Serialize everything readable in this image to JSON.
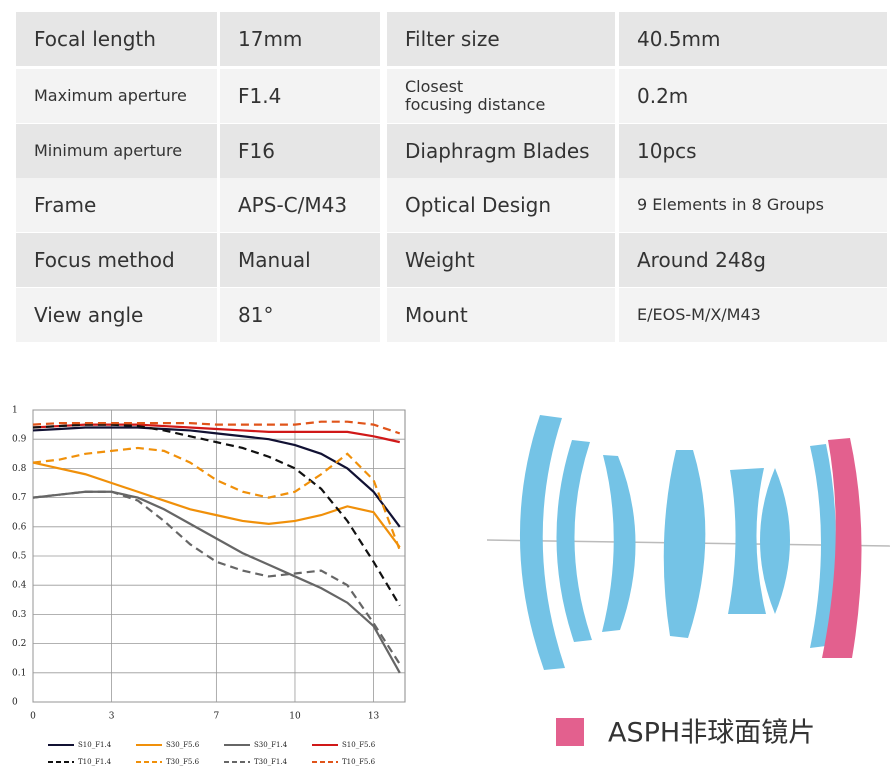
{
  "table": {
    "rows": [
      [
        "Focal length",
        "17mm",
        "Filter size",
        "40.5mm"
      ],
      [
        "Maximum aperture",
        "F1.4",
        "Closest\nfocusing distance",
        "0.2m"
      ],
      [
        "Minimum aperture",
        "F16",
        "Diaphragm Blades",
        "10pcs"
      ],
      [
        "Frame",
        "APS-C/M43",
        "Optical Design",
        "9 Elements in 8 Groups"
      ],
      [
        "Focus method",
        "Manual",
        "Weight",
        "Around 248g"
      ],
      [
        "View angle",
        "81°",
        "Mount",
        "E/EOS-M/X/M43"
      ]
    ]
  },
  "chart_data": {
    "type": "line",
    "x": [
      0,
      1,
      2,
      3,
      4,
      5,
      6,
      7,
      8,
      9,
      10,
      11,
      12,
      13,
      14
    ],
    "xlim": [
      0,
      14.2
    ],
    "xticks": [
      0,
      3,
      7,
      10,
      13
    ],
    "ylim": [
      0,
      1
    ],
    "yticks": [
      0,
      0.1,
      0.2,
      0.3,
      0.4,
      0.5,
      0.6,
      0.7,
      0.8,
      0.9,
      1
    ],
    "grid": true,
    "series": [
      {
        "name": "S10_F1.4",
        "color": "#111133",
        "style": "solid",
        "values": [
          0.93,
          0.935,
          0.94,
          0.94,
          0.94,
          0.935,
          0.93,
          0.92,
          0.91,
          0.9,
          0.88,
          0.85,
          0.8,
          0.72,
          0.6
        ]
      },
      {
        "name": "S30_F5.6",
        "color": "#f0900a",
        "style": "solid",
        "values": [
          0.82,
          0.8,
          0.78,
          0.75,
          0.72,
          0.69,
          0.66,
          0.64,
          0.62,
          0.61,
          0.62,
          0.64,
          0.67,
          0.65,
          0.53
        ]
      },
      {
        "name": "S30_F1.4",
        "color": "#666666",
        "style": "solid",
        "values": [
          0.7,
          0.71,
          0.72,
          0.72,
          0.7,
          0.66,
          0.61,
          0.56,
          0.51,
          0.47,
          0.43,
          0.39,
          0.34,
          0.26,
          0.1
        ]
      },
      {
        "name": "S10_F5.6",
        "color": "#d01818",
        "style": "solid",
        "values": [
          0.94,
          0.945,
          0.95,
          0.95,
          0.95,
          0.945,
          0.94,
          0.935,
          0.93,
          0.925,
          0.925,
          0.925,
          0.925,
          0.91,
          0.89
        ]
      },
      {
        "name": "T10_F1.4",
        "color": "#111111",
        "style": "dashed",
        "values": [
          0.94,
          0.945,
          0.95,
          0.95,
          0.945,
          0.93,
          0.91,
          0.89,
          0.87,
          0.84,
          0.8,
          0.73,
          0.62,
          0.48,
          0.33
        ]
      },
      {
        "name": "T30_F5.6",
        "color": "#f0900a",
        "style": "dashed",
        "values": [
          0.82,
          0.83,
          0.85,
          0.86,
          0.87,
          0.86,
          0.82,
          0.76,
          0.72,
          0.7,
          0.72,
          0.78,
          0.85,
          0.76,
          0.52
        ]
      },
      {
        "name": "T30_F1.4",
        "color": "#666666",
        "style": "dashed",
        "values": [
          0.7,
          0.71,
          0.72,
          0.72,
          0.69,
          0.62,
          0.54,
          0.48,
          0.45,
          0.43,
          0.44,
          0.45,
          0.4,
          0.27,
          0.13
        ]
      },
      {
        "name": "T10_F5.6",
        "color": "#e0541a",
        "style": "dashed",
        "values": [
          0.95,
          0.955,
          0.955,
          0.955,
          0.955,
          0.955,
          0.955,
          0.95,
          0.95,
          0.95,
          0.95,
          0.96,
          0.96,
          0.95,
          0.92
        ]
      }
    ]
  },
  "legend": {
    "label": "ASPH非球面镜片"
  }
}
